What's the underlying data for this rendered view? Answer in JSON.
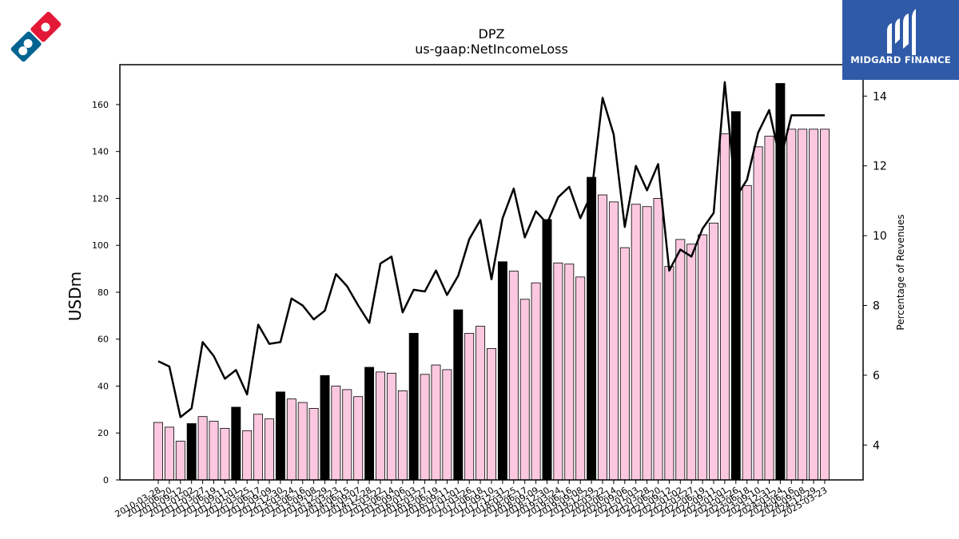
{
  "header": {
    "ticker": "DPZ",
    "metric": "us-gaap:NetIncomeLoss"
  },
  "brand": {
    "name": "MIDGARD FINANCE",
    "color": "#2f5aa8"
  },
  "logo": {
    "icon": "domino-tile-icon",
    "red": "#e31837",
    "blue": "#006491"
  },
  "chart_data": {
    "type": "bar",
    "title": "DPZ",
    "subtitle": "us-gaap:NetIncomeLoss",
    "ylabel": "USDm",
    "y2label": "Percentage of Revenues",
    "ylim": [
      0,
      177
    ],
    "y2lim": [
      3,
      14.9
    ],
    "yticks": [
      0,
      20,
      40,
      60,
      80,
      100,
      120,
      140,
      160
    ],
    "y2ticks": [
      4,
      6,
      8,
      10,
      12,
      14
    ],
    "bar_colors": {
      "quarter": "#fcc8e0",
      "annual": "#000000"
    },
    "line_color": "#000000",
    "categories": [
      "2010-03-28",
      "2010-06-20",
      "2010-09-12",
      "2011-01-02",
      "2011-03-27",
      "2011-06-19",
      "2011-09-11",
      "2012-01-01",
      "2012-03-25",
      "2012-06-17",
      "2012-09-09",
      "2012-12-30",
      "2013-03-24",
      "2013-06-16",
      "2013-09-08",
      "2013-12-29",
      "2014-03-23",
      "2014-06-15",
      "2014-09-07",
      "2014-12-28",
      "2015-03-22",
      "2015-06-14",
      "2015-09-06",
      "2016-01-03",
      "2016-03-27",
      "2016-06-19",
      "2016-09-11",
      "2017-01-01",
      "2017-03-26",
      "2017-06-18",
      "2017-09-10",
      "2017-12-31",
      "2018-03-25",
      "2018-06-17",
      "2018-09-09",
      "2018-12-30",
      "2019-03-24",
      "2019-06-16",
      "2019-09-08",
      "2019-12-29",
      "2020-03-22",
      "2020-06-14",
      "2020-09-06",
      "2021-01-03",
      "2021-03-28",
      "2021-06-20",
      "2021-09-12",
      "2022-01-02",
      "2022-03-27",
      "2022-06-19",
      "2022-09-11",
      "2023-01-01",
      "2023-03-26",
      "2023-06-18",
      "2023-09-10",
      "2023-12-31",
      "2024-03-24",
      "2024-06-16",
      "2024-09-08",
      "2024-12-29",
      "2025-03-23"
    ],
    "series": [
      {
        "values": [
          24.5,
          22.5,
          16.5,
          24,
          27,
          25,
          22,
          31,
          21,
          28,
          26,
          37.5,
          34.5,
          33,
          30.5,
          44.5,
          40,
          38.5,
          35.5,
          48,
          46,
          45.5,
          38,
          62.5,
          45,
          49,
          47,
          72.5,
          62.5,
          65.5,
          56,
          93,
          89,
          77,
          84,
          111,
          92.5,
          92,
          86.5,
          129,
          121.5,
          118.5,
          99,
          117.5,
          116.5,
          120,
          91,
          102.5,
          100.5,
          104.5,
          109.5,
          147.5,
          157,
          125.5,
          142,
          146.5,
          169,
          149.5,
          149.5,
          149.5,
          149.5
        ],
        "annual": [
          false,
          false,
          false,
          true,
          false,
          false,
          false,
          true,
          false,
          false,
          false,
          true,
          false,
          false,
          false,
          true,
          false,
          false,
          false,
          true,
          false,
          false,
          false,
          true,
          false,
          false,
          false,
          true,
          false,
          false,
          false,
          true,
          false,
          false,
          false,
          true,
          false,
          false,
          false,
          true,
          false,
          false,
          false,
          false,
          false,
          false,
          false,
          false,
          false,
          false,
          false,
          false,
          true,
          false,
          false,
          false,
          true,
          false,
          false,
          false,
          false
        ]
      },
      {
        "name": "Percentage of Revenues",
        "axis": "right",
        "values": [
          6.4,
          6.25,
          4.8,
          5.05,
          6.95,
          6.55,
          5.9,
          6.15,
          5.45,
          7.45,
          6.9,
          6.95,
          8.2,
          8.0,
          7.6,
          7.85,
          8.9,
          8.55,
          8.0,
          7.5,
          9.2,
          9.4,
          7.8,
          8.45,
          8.4,
          9.0,
          8.3,
          8.85,
          9.9,
          10.45,
          8.75,
          10.5,
          11.35,
          9.95,
          10.7,
          10.35,
          11.1,
          11.4,
          10.5,
          11.2,
          13.95,
          12.9,
          10.25,
          12.0,
          11.3,
          12.05,
          9.0,
          9.6,
          9.4,
          10.2,
          10.65,
          14.4,
          11.1,
          11.6,
          12.95,
          13.6,
          12.15,
          13.45,
          13.45,
          13.45,
          13.45
        ]
      }
    ]
  }
}
